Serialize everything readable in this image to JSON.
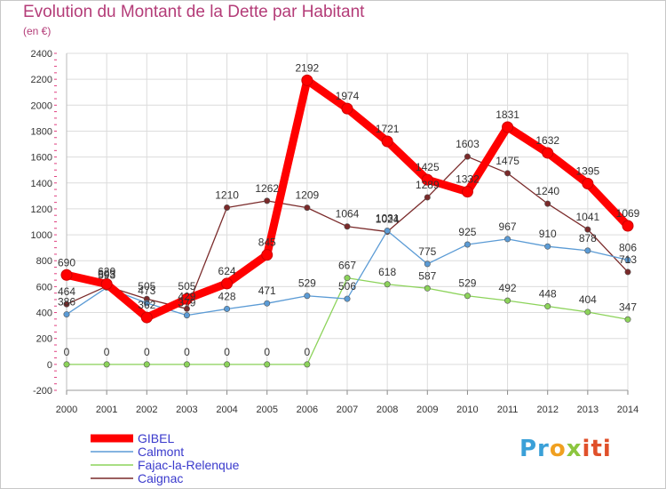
{
  "chart_data": {
    "type": "line",
    "title": "Evolution du Montant de la Dette par Habitant",
    "subtitle": "(en €)",
    "x": [
      "2000",
      "2001",
      "2002",
      "2003",
      "2004",
      "2005",
      "2006",
      "2007",
      "2008",
      "2009",
      "2010",
      "2011",
      "2012",
      "2013",
      "2014"
    ],
    "ylim": [
      -200,
      2400
    ],
    "yticks": [
      -200,
      0,
      200,
      400,
      600,
      800,
      1000,
      1200,
      1400,
      1600,
      1800,
      2000,
      2200,
      2400
    ],
    "grid": true,
    "legend_position": "bottom-left",
    "series": [
      {
        "name": "GIBEL",
        "color": "#ff0000",
        "values": [
          690,
          620,
          362,
          505,
          624,
          845,
          2192,
          1974,
          1721,
          1425,
          1332,
          1831,
          1632,
          1395,
          1069
        ]
      },
      {
        "name": "Calmont",
        "color": "#5b9bd5",
        "values": [
          386,
          593,
          473,
          379,
          428,
          471,
          529,
          506,
          1031,
          775,
          925,
          967,
          910,
          878,
          806
        ]
      },
      {
        "name": "Fajac-la-Relenque",
        "color": "#8cd35a",
        "values": [
          0,
          0,
          0,
          0,
          0,
          0,
          0,
          667,
          618,
          587,
          529,
          492,
          448,
          404,
          347
        ]
      },
      {
        "name": "Caignac",
        "color": "#7a2a2a",
        "values": [
          464,
          603,
          505,
          429,
          1210,
          1262,
          1209,
          1064,
          1024,
          1289,
          1603,
          1475,
          1240,
          1041,
          713
        ]
      }
    ]
  },
  "branding": {
    "logo_parts": [
      "Pr",
      "o",
      "x",
      "iti"
    ]
  }
}
